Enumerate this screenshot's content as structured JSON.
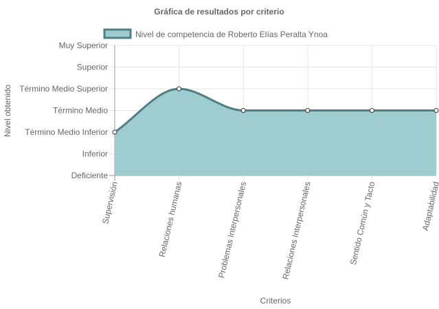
{
  "chart_data": {
    "type": "area",
    "title": "Gráfica de resultados por criterio",
    "xlabel": "Criterios",
    "ylabel": "Nivel obtenido",
    "categories": [
      "Supervisión",
      "Relaciones humanas",
      "Problemas Interpersonales",
      "Relaciones Interpersonales",
      "Sentido Común y Tacto",
      "Adaptabilidad"
    ],
    "y_levels": [
      "Deficiente",
      "Inferior",
      "Término Medio Inferior",
      "Término Medio",
      "Término Medio Superior",
      "Superior",
      "Muy Superior"
    ],
    "ylim": [
      0,
      6
    ],
    "series": [
      {
        "name": "Nivel de competencia de Roberto Elías Peralta Ynoa",
        "values": [
          2,
          4,
          3,
          3,
          3,
          3
        ]
      }
    ],
    "legend_position": "top",
    "grid": true,
    "colors": {
      "line": "#4e7f84",
      "fill": "#9fcccf",
      "point_fill": "#ffffff",
      "grid": "#e6e6e6",
      "axis": "#999999"
    }
  }
}
